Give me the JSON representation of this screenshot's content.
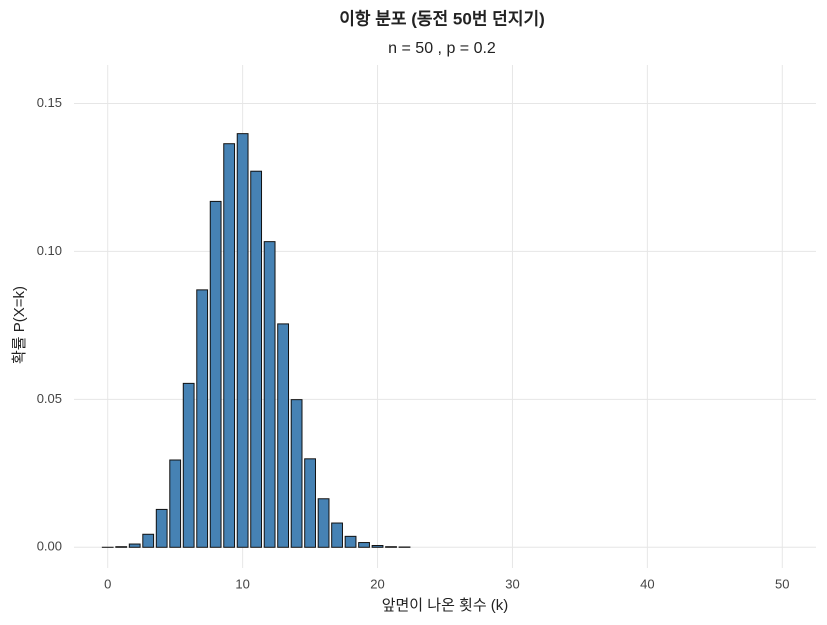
{
  "chart_data": {
    "type": "bar",
    "title": "이항 분포 (동전 50번 던지기)",
    "subtitle": "n = 50 , p = 0.2",
    "x_label": "앞면이 나온 횟수 (k)",
    "y_label": "확률 P(X=k)",
    "x": [
      0,
      1,
      2,
      3,
      4,
      5,
      6,
      7,
      8,
      9,
      10,
      11,
      12,
      13,
      14,
      15,
      16,
      17,
      18,
      19,
      20,
      21,
      22,
      23,
      24,
      25,
      26,
      27,
      28,
      29,
      30,
      31,
      32,
      33,
      34,
      35,
      36,
      37,
      38,
      39,
      40,
      41,
      42,
      43,
      44,
      45,
      46,
      47,
      48,
      49,
      50
    ],
    "values": [
      1e-05,
      0.0002,
      0.0011,
      0.0044,
      0.0128,
      0.0295,
      0.0554,
      0.087,
      0.1169,
      0.1364,
      0.1398,
      0.1271,
      0.1033,
      0.0755,
      0.0499,
      0.0299,
      0.0164,
      0.0082,
      0.0037,
      0.0016,
      0.0006,
      0.0002,
      0.0001,
      0,
      0,
      0,
      0,
      0,
      0,
      0,
      0,
      0,
      0,
      0,
      0,
      0,
      0,
      0,
      0,
      0,
      0,
      0,
      0,
      0,
      0,
      0,
      0,
      0,
      0,
      0,
      0
    ],
    "color": "#4682b4",
    "xlim": [
      -2.5,
      52.5
    ],
    "xticks": [
      0,
      10,
      20,
      30,
      40,
      50
    ],
    "ylim": [
      -0.007,
      0.163
    ],
    "yticks": [
      {
        "value": 0,
        "label": "0.00"
      },
      {
        "value": 0.05,
        "label": "0.05"
      },
      {
        "value": 0.1,
        "label": "0.10"
      },
      0.15
    ],
    "grid": true
  }
}
